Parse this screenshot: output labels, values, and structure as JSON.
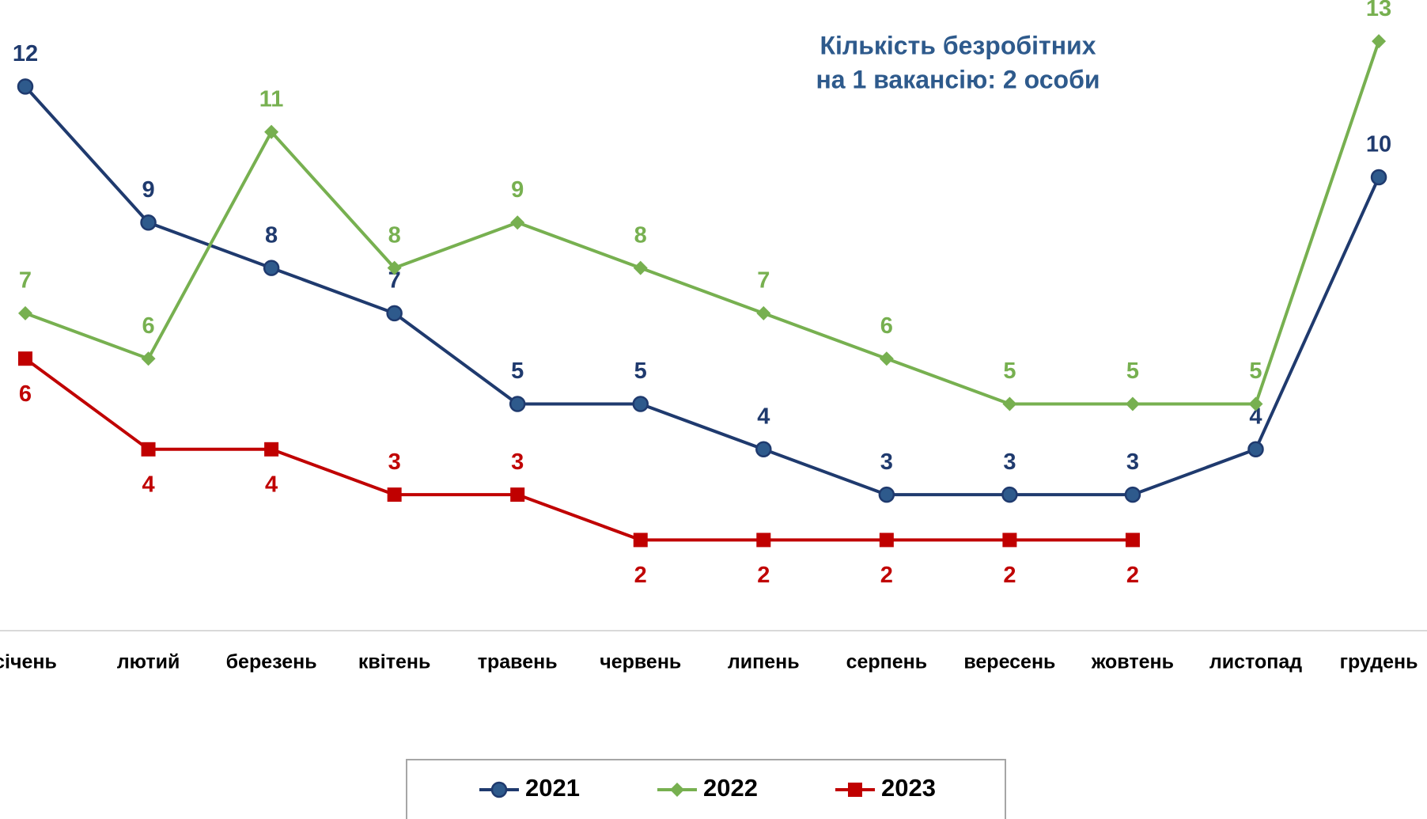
{
  "chart_data": {
    "type": "line",
    "title": [
      "Кількість безробітних",
      "на 1 вакансію: 2 особи"
    ],
    "categories": [
      "січень",
      "лютий",
      "березень",
      "квітень",
      "травень",
      "червень",
      "липень",
      "серпень",
      "вересень",
      "жовтень",
      "листопад",
      "грудень"
    ],
    "series": [
      {
        "name": "2021",
        "color": "#1f3a6e",
        "marker": "circle",
        "values": [
          12,
          9,
          8,
          7,
          5,
          5,
          4,
          3,
          3,
          3,
          4,
          10
        ]
      },
      {
        "name": "2022",
        "color": "#77b050",
        "marker": "diamond",
        "values": [
          7,
          6,
          11,
          8,
          9,
          8,
          7,
          6,
          5,
          5,
          5,
          13
        ]
      },
      {
        "name": "2023",
        "color": "#c00000",
        "marker": "square",
        "values": [
          6,
          4,
          4,
          3,
          3,
          2,
          2,
          2,
          2,
          2,
          null,
          null
        ]
      }
    ],
    "ylim": [
      0,
      14
    ],
    "legend": "bottom"
  }
}
